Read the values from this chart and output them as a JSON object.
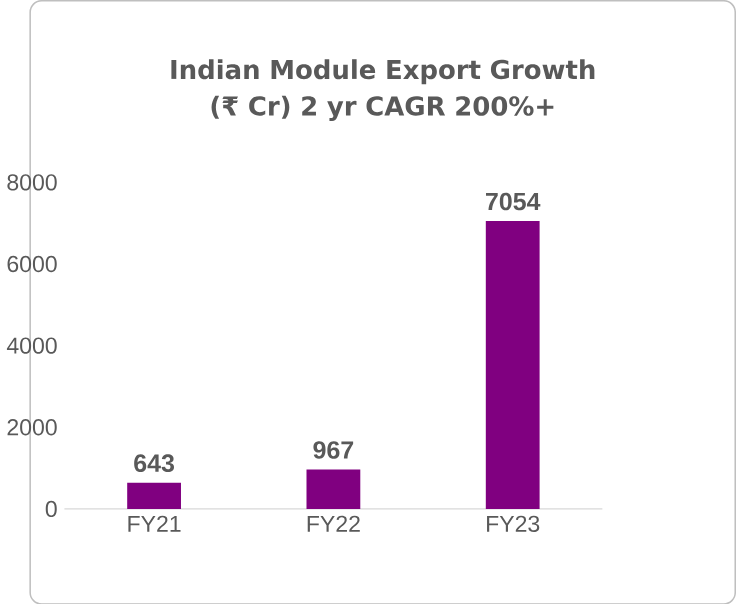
{
  "chart_data": {
    "type": "bar",
    "title": "Indian Module Export Growth (₹ Cr) 2 yr CAGR 200%+",
    "categories": [
      "FY21",
      "FY22",
      "FY23"
    ],
    "values": [
      643,
      967,
      7054
    ],
    "color": "#800080",
    "ylim": [
      0,
      8000
    ],
    "yticks": [
      0,
      2000,
      4000,
      6000,
      8000
    ],
    "data_labels": true
  }
}
